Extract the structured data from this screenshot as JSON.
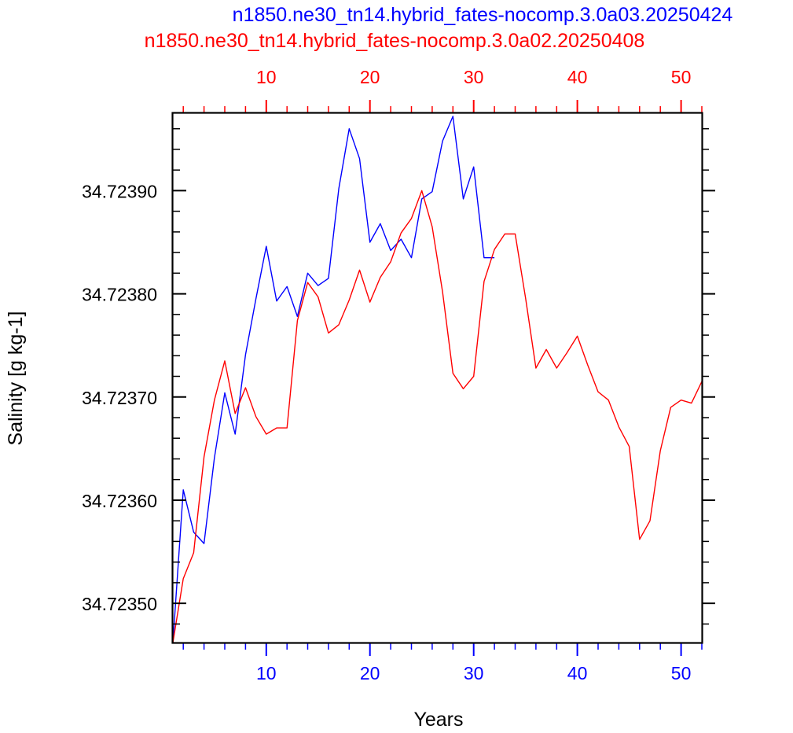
{
  "chart_data": {
    "type": "line",
    "titles": [
      {
        "text": "n1850.ne30_tn14.hybrid_fates-nocomp.3.0a03.20250424",
        "color": "#0000ff"
      },
      {
        "text": "n1850.ne30_tn14.hybrid_fates-nocomp.3.0a02.20250408",
        "color": "#ff0000"
      }
    ],
    "xlabel": "Years",
    "ylabel": "Salinity [g kg-1]",
    "xlim": [
      1,
      52
    ],
    "ylim": [
      34.723462,
      34.723975
    ],
    "x_ticks": [
      {
        "value": 10,
        "label": "10"
      },
      {
        "value": 20,
        "label": "20"
      },
      {
        "value": 30,
        "label": "30"
      },
      {
        "value": 40,
        "label": "40"
      },
      {
        "value": 50,
        "label": "50"
      }
    ],
    "y_ticks": [
      {
        "value": 34.7235,
        "label": "34.72350"
      },
      {
        "value": 34.7236,
        "label": "34.72360"
      },
      {
        "value": 34.7237,
        "label": "34.72370"
      },
      {
        "value": 34.7238,
        "label": "34.72380"
      },
      {
        "value": 34.7239,
        "label": "34.72390"
      }
    ],
    "bottom_axis_color": "#0000ff",
    "top_axis_color": "#ff0000",
    "grid": false,
    "series": [
      {
        "color": "#0000ff",
        "x": [
          1,
          2,
          3,
          4,
          5,
          6,
          7,
          8,
          9,
          10,
          11,
          12,
          13,
          14,
          15,
          16,
          17,
          18,
          19,
          20,
          21,
          22,
          23,
          24,
          25,
          26,
          27,
          28,
          29,
          30,
          31,
          32
        ],
        "values": [
          34.723462,
          34.72361,
          34.723569,
          34.723558,
          34.723641,
          34.723704,
          34.723664,
          34.723741,
          34.723795,
          34.723846,
          34.723793,
          34.723807,
          34.723778,
          34.72382,
          34.723808,
          34.723815,
          34.723902,
          34.72396,
          34.723931,
          34.72385,
          34.723868,
          34.723842,
          34.723853,
          34.723835,
          34.723892,
          34.723899,
          34.723948,
          34.723972,
          34.723892,
          34.723923,
          34.723835,
          34.723835
        ]
      },
      {
        "color": "#ff0000",
        "x": [
          1,
          2,
          3,
          4,
          5,
          6,
          7,
          8,
          9,
          10,
          11,
          12,
          13,
          14,
          15,
          16,
          17,
          18,
          19,
          20,
          21,
          22,
          23,
          24,
          25,
          26,
          27,
          28,
          29,
          30,
          31,
          32,
          33,
          34,
          35,
          36,
          37,
          38,
          39,
          40,
          41,
          42,
          43,
          44,
          45,
          46,
          47,
          48,
          49,
          50,
          51,
          52
        ],
        "values": [
          34.723462,
          34.723524,
          34.723549,
          34.723642,
          34.723697,
          34.723735,
          34.723684,
          34.723709,
          34.723681,
          34.723664,
          34.72367,
          34.72367,
          34.723774,
          34.723811,
          34.723797,
          34.723762,
          34.72377,
          34.723794,
          34.723823,
          34.723792,
          34.723816,
          34.723831,
          34.723859,
          34.723873,
          34.7239,
          34.723865,
          34.723802,
          34.723723,
          34.723708,
          34.72372,
          34.723812,
          34.723843,
          34.723858,
          34.723858,
          34.723796,
          34.723728,
          34.723746,
          34.723728,
          34.723743,
          34.723759,
          34.723731,
          34.723705,
          34.723697,
          34.723671,
          34.723652,
          34.723562,
          34.72358,
          34.723648,
          34.72369,
          34.723697,
          34.723694,
          34.723715
        ]
      }
    ]
  }
}
